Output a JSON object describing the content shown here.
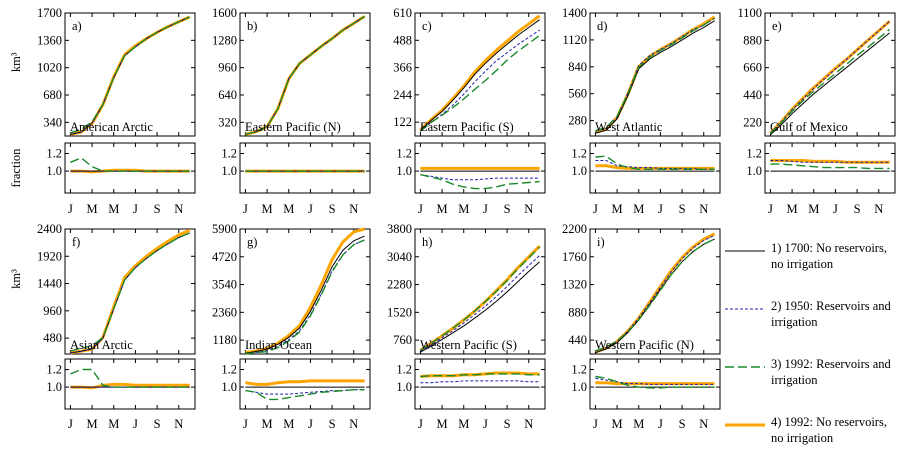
{
  "chart_data": {
    "type": "line",
    "months": [
      "J",
      "M",
      "M",
      "J",
      "S",
      "N"
    ],
    "month_tick_positions": [
      1,
      3,
      5,
      7,
      9,
      11
    ],
    "ylabel_top": "km³",
    "ylabel_bottom": "fraction",
    "series_names": [
      "1) 1700: No reservoirs, no irrigation",
      "2) 1950: Reservoirs and irrigation",
      "3) 1992: Reservoirs and irrigation",
      "4) 1992: No reservoirs, no irrigation"
    ],
    "series_colors": [
      "#000000",
      "#1f1fa8",
      "#1a8a2a",
      "#ffa500"
    ],
    "fraction_ylim": [
      0.75,
      1.32
    ],
    "fraction_ticks": [
      "1.0",
      "1.2"
    ],
    "panels": [
      {
        "label": "a)",
        "name": "American Arctic",
        "ylim": [
          170,
          1700
        ],
        "yticks": [
          340,
          680,
          1020,
          1360,
          1700
        ],
        "base": [
          190,
          220,
          330,
          560,
          900,
          1170,
          1280,
          1380,
          1460,
          1530,
          1590,
          1650
        ],
        "frac": [
          [
            1.0,
            1.0,
            1.0,
            1.0,
            1.0,
            1.0,
            1.0,
            1.0,
            1.0,
            1.0,
            1.0,
            1.0
          ],
          [
            1.1,
            1.15,
            1.05,
            1.0,
            1.0,
            1.0,
            1.0,
            1.0,
            1.0,
            1.0,
            1.0,
            1.0
          ],
          [
            1.0,
            1.0,
            0.99,
            1.0,
            1.01,
            1.01,
            1.01,
            1.0,
            1.0,
            1.0,
            1.0,
            1.0
          ]
        ]
      },
      {
        "label": "b)",
        "name": "Eastern Pacific (N)",
        "ylim": [
          160,
          1600
        ],
        "yticks": [
          320,
          640,
          960,
          1280,
          1600
        ],
        "base": [
          180,
          210,
          270,
          480,
          830,
          1010,
          1110,
          1210,
          1300,
          1400,
          1480,
          1560
        ],
        "frac": [
          [
            1.0,
            1.0,
            1.0,
            1.0,
            1.0,
            1.0,
            1.0,
            1.0,
            1.0,
            1.0,
            1.0,
            1.0
          ],
          [
            1.0,
            1.0,
            1.0,
            1.0,
            1.0,
            1.0,
            1.0,
            1.0,
            1.0,
            1.0,
            1.0,
            1.0
          ],
          [
            1.0,
            1.0,
            1.0,
            1.0,
            1.0,
            1.0,
            1.0,
            1.0,
            1.0,
            1.0,
            1.0,
            1.0
          ]
        ]
      },
      {
        "label": "c)",
        "name": "Eastern Pacific (S)",
        "ylim": [
          60,
          610
        ],
        "yticks": [
          122,
          244,
          366,
          488,
          610
        ],
        "base": [
          85,
          130,
          170,
          220,
          275,
          335,
          385,
          430,
          470,
          510,
          545,
          580
        ],
        "frac": [
          [
            0.96,
            0.94,
            0.92,
            0.9,
            0.9,
            0.9,
            0.91,
            0.92,
            0.92,
            0.92,
            0.92,
            0.92
          ],
          [
            0.96,
            0.93,
            0.9,
            0.85,
            0.82,
            0.8,
            0.8,
            0.82,
            0.85,
            0.86,
            0.87,
            0.88
          ],
          [
            1.03,
            1.03,
            1.03,
            1.03,
            1.03,
            1.03,
            1.03,
            1.03,
            1.03,
            1.03,
            1.03,
            1.03
          ]
        ]
      },
      {
        "label": "d)",
        "name": "West Atlantic",
        "ylim": [
          120,
          1400
        ],
        "yticks": [
          280,
          560,
          840,
          1120,
          1400
        ],
        "base": [
          150,
          180,
          300,
          540,
          820,
          920,
          990,
          1050,
          1120,
          1190,
          1250,
          1320
        ],
        "frac": [
          [
            1.12,
            1.12,
            1.06,
            1.05,
            1.04,
            1.04,
            1.03,
            1.03,
            1.03,
            1.03,
            1.02,
            1.02
          ],
          [
            1.16,
            1.17,
            1.08,
            1.04,
            1.02,
            1.02,
            1.02,
            1.02,
            1.02,
            1.02,
            1.02,
            1.02
          ],
          [
            1.06,
            1.06,
            1.04,
            1.03,
            1.03,
            1.03,
            1.03,
            1.03,
            1.03,
            1.03,
            1.03,
            1.03
          ]
        ]
      },
      {
        "label": "e)",
        "name": "Gulf of Mexico",
        "ylim": [
          110,
          1100
        ],
        "yticks": [
          220,
          440,
          660,
          880,
          1100
        ],
        "base": [
          120,
          200,
          290,
          370,
          450,
          520,
          590,
          660,
          730,
          800,
          870,
          940
        ],
        "frac": [
          [
            1.12,
            1.12,
            1.11,
            1.1,
            1.1,
            1.1,
            1.1,
            1.1,
            1.1,
            1.1,
            1.1,
            1.1
          ],
          [
            1.08,
            1.08,
            1.07,
            1.06,
            1.05,
            1.04,
            1.04,
            1.04,
            1.04,
            1.03,
            1.03,
            1.03
          ],
          [
            1.12,
            1.12,
            1.12,
            1.12,
            1.11,
            1.11,
            1.11,
            1.1,
            1.1,
            1.1,
            1.1,
            1.1
          ]
        ]
      },
      {
        "label": "f)",
        "name": "Asian Arctic",
        "ylim": [
          200,
          2400
        ],
        "yticks": [
          480,
          960,
          1440,
          1920,
          2400
        ],
        "base": [
          220,
          250,
          290,
          480,
          1000,
          1500,
          1720,
          1880,
          2020,
          2140,
          2250,
          2330
        ],
        "frac": [
          [
            1.0,
            1.0,
            1.0,
            1.0,
            1.0,
            1.0,
            1.0,
            1.0,
            1.0,
            1.0,
            1.0,
            1.0
          ],
          [
            1.15,
            1.2,
            1.2,
            1.02,
            1.0,
            1.0,
            1.0,
            1.0,
            1.0,
            1.0,
            1.0,
            1.0
          ],
          [
            1.0,
            1.0,
            0.99,
            1.02,
            1.03,
            1.03,
            1.02,
            1.02,
            1.02,
            1.02,
            1.02,
            1.02
          ]
        ]
      },
      {
        "label": "g)",
        "name": "Indian Ocean",
        "ylim": [
          590,
          5900
        ],
        "yticks": [
          1180,
          2360,
          3540,
          4720,
          5900
        ],
        "base": [
          620,
          700,
          800,
          1000,
          1300,
          1700,
          2400,
          3300,
          4300,
          5000,
          5400,
          5600
        ],
        "frac": [
          [
            0.96,
            0.94,
            0.92,
            0.92,
            0.92,
            0.93,
            0.94,
            0.95,
            0.96,
            0.96,
            0.97,
            0.97
          ],
          [
            0.96,
            0.94,
            0.86,
            0.86,
            0.88,
            0.9,
            0.92,
            0.94,
            0.95,
            0.96,
            0.97,
            0.97
          ],
          [
            1.05,
            1.03,
            1.03,
            1.05,
            1.06,
            1.06,
            1.07,
            1.07,
            1.07,
            1.07,
            1.07,
            1.07
          ]
        ]
      },
      {
        "label": "h)",
        "name": "Western Pacific (S)",
        "ylim": [
          380,
          3800
        ],
        "yticks": [
          760,
          1520,
          2280,
          3040,
          3800
        ],
        "base": [
          430,
          600,
          780,
          960,
          1150,
          1360,
          1580,
          1820,
          2080,
          2360,
          2640,
          2900
        ],
        "frac": [
          [
            1.05,
            1.05,
            1.06,
            1.06,
            1.07,
            1.07,
            1.07,
            1.07,
            1.07,
            1.07,
            1.06,
            1.06
          ],
          [
            1.12,
            1.13,
            1.13,
            1.13,
            1.14,
            1.14,
            1.15,
            1.15,
            1.15,
            1.15,
            1.14,
            1.14
          ],
          [
            1.12,
            1.13,
            1.13,
            1.13,
            1.14,
            1.14,
            1.15,
            1.16,
            1.16,
            1.16,
            1.15,
            1.15
          ]
        ]
      },
      {
        "label": "i)",
        "name": "Western Pacific (N)",
        "ylim": [
          220,
          2200
        ],
        "yticks": [
          440,
          880,
          1320,
          1760,
          2200
        ],
        "base": [
          240,
          300,
          400,
          560,
          760,
          1000,
          1240,
          1480,
          1680,
          1840,
          1960,
          2040
        ],
        "frac": [
          [
            1.1,
            1.08,
            1.06,
            1.04,
            1.04,
            1.03,
            1.03,
            1.03,
            1.03,
            1.03,
            1.03,
            1.03
          ],
          [
            1.12,
            1.1,
            1.06,
            1.02,
            1.0,
            0.99,
            0.99,
            1.0,
            1.0,
            1.0,
            1.0,
            1.0
          ],
          [
            1.05,
            1.05,
            1.04,
            1.04,
            1.04,
            1.04,
            1.04,
            1.04,
            1.04,
            1.04,
            1.04,
            1.04
          ]
        ]
      }
    ]
  }
}
